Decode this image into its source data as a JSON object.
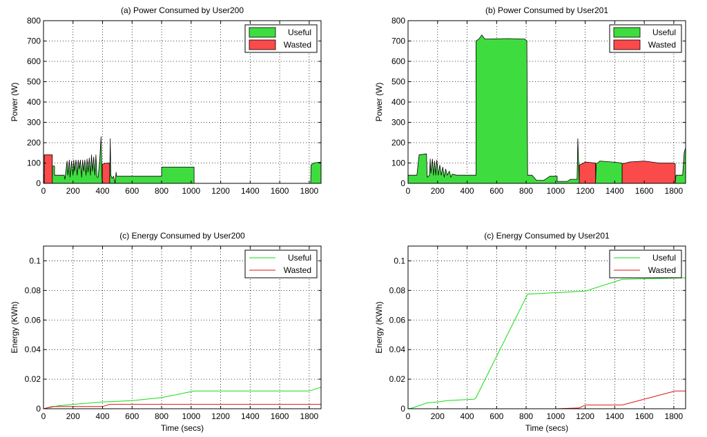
{
  "figure": {
    "background": "#ffffff",
    "useful_color": "#3fdc3f",
    "wasted_color": "#fb4a4a",
    "useful_line_color": "#11dd11",
    "wasted_line_color": "#dd1111"
  },
  "chart_data": [
    {
      "id": "a",
      "type": "area",
      "title": "(a) Power Consumed by User200",
      "xlabel": "",
      "ylabel": "Power (W)",
      "xlim": [
        0,
        1880
      ],
      "ylim": [
        0,
        800
      ],
      "xticks": [
        0,
        200,
        400,
        600,
        800,
        1000,
        1200,
        1400,
        1600,
        1800
      ],
      "yticks": [
        0,
        100,
        200,
        300,
        400,
        500,
        600,
        700,
        800
      ],
      "grid": true,
      "legend": {
        "position": "top-right",
        "entries": [
          "Useful",
          "Wasted"
        ]
      },
      "series": [
        {
          "name": "Useful",
          "segments": [
            [
              [
                0,
                40
              ],
              [
                60,
                40
              ],
              [
                60,
                85
              ],
              [
                75,
                85
              ],
              [
                75,
                40
              ],
              [
                140,
                40
              ],
              [
                145,
                20
              ],
              [
                160,
                110
              ],
              [
                165,
                40
              ],
              [
                175,
                115
              ],
              [
                180,
                30
              ],
              [
                190,
                110
              ],
              [
                200,
                40
              ],
              [
                205,
                115
              ],
              [
                210,
                60
              ],
              [
                220,
                115
              ],
              [
                228,
                40
              ],
              [
                235,
                115
              ],
              [
                242,
                70
              ],
              [
                250,
                115
              ],
              [
                258,
                30
              ],
              [
                265,
                115
              ],
              [
                272,
                60
              ],
              [
                280,
                115
              ],
              [
                288,
                40
              ],
              [
                295,
                120
              ],
              [
                302,
                55
              ],
              [
                310,
                125
              ],
              [
                318,
                40
              ],
              [
                325,
                140
              ],
              [
                332,
                60
              ],
              [
                340,
                130
              ],
              [
                348,
                40
              ],
              [
                355,
                140
              ],
              [
                362,
                30
              ],
              [
                370,
                30
              ],
              [
                380,
                110
              ],
              [
                390,
                230
              ],
              [
                395,
                40
              ],
              [
                398,
                0
              ]
            ],
            [
              [
                448,
                0
              ],
              [
                452,
                220
              ],
              [
                456,
                40
              ],
              [
                465,
                25
              ],
              [
                475,
                35
              ],
              [
                485,
                0
              ]
            ],
            [
              [
                485,
                0
              ],
              [
                490,
                40
              ],
              [
                492,
                55
              ],
              [
                495,
                35
              ],
              [
                640,
                35
              ],
              [
                800,
                35
              ],
              [
                800,
                80
              ],
              [
                1020,
                80
              ],
              [
                1020,
                0
              ]
            ],
            [
              [
                1810,
                0
              ],
              [
                1812,
                90
              ],
              [
                1830,
                100
              ],
              [
                1880,
                105
              ],
              [
                1880,
                0
              ]
            ]
          ]
        },
        {
          "name": "Wasted",
          "segments": [
            [
              [
                5,
                0
              ],
              [
                5,
                140
              ],
              [
                60,
                140
              ],
              [
                60,
                0
              ]
            ],
            [
              [
                398,
                0
              ],
              [
                398,
                95
              ],
              [
                430,
                100
              ],
              [
                448,
                100
              ],
              [
                448,
                0
              ]
            ]
          ]
        }
      ]
    },
    {
      "id": "b",
      "type": "area",
      "title": "(b) Power Consumed by User201",
      "xlabel": "",
      "ylabel": "Power (W)",
      "xlim": [
        0,
        1880
      ],
      "ylim": [
        0,
        800
      ],
      "xticks": [
        0,
        200,
        400,
        600,
        800,
        1000,
        1200,
        1400,
        1600,
        1800
      ],
      "yticks": [
        0,
        100,
        200,
        300,
        400,
        500,
        600,
        700,
        800
      ],
      "grid": true,
      "legend": {
        "position": "top-right",
        "entries": [
          "Useful",
          "Wasted"
        ]
      },
      "series": [
        {
          "name": "Useful",
          "segments": [
            [
              [
                0,
                40
              ],
              [
                60,
                40
              ],
              [
                75,
                140
              ],
              [
                125,
                145
              ],
              [
                130,
                30
              ],
              [
                145,
                40
              ],
              [
                150,
                120
              ],
              [
                155,
                50
              ],
              [
                165,
                120
              ],
              [
                172,
                40
              ],
              [
                180,
                110
              ],
              [
                188,
                40
              ],
              [
                195,
                115
              ],
              [
                205,
                40
              ],
              [
                215,
                90
              ],
              [
                225,
                40
              ],
              [
                235,
                80
              ],
              [
                245,
                30
              ],
              [
                255,
                70
              ],
              [
                265,
                40
              ],
              [
                280,
                60
              ],
              [
                290,
                30
              ],
              [
                300,
                45
              ],
              [
                330,
                40
              ],
              [
                460,
                40
              ],
              [
                460,
                700
              ],
              [
                480,
                710
              ],
              [
                500,
                730
              ],
              [
                520,
                710
              ],
              [
                680,
                712
              ],
              [
                790,
                710
              ],
              [
                805,
                700
              ],
              [
                810,
                40
              ],
              [
                840,
                40
              ],
              [
                870,
                15
              ],
              [
                920,
                15
              ],
              [
                960,
                35
              ],
              [
                1010,
                35
              ],
              [
                1010,
                10
              ],
              [
                1080,
                10
              ],
              [
                1100,
                20
              ],
              [
                1145,
                20
              ],
              [
                1150,
                220
              ],
              [
                1160,
                0
              ]
            ],
            [
              [
                1270,
                0
              ],
              [
                1275,
                95
              ],
              [
                1300,
                110
              ],
              [
                1380,
                105
              ],
              [
                1450,
                100
              ],
              [
                1450,
                0
              ]
            ],
            [
              [
                1810,
                0
              ],
              [
                1815,
                40
              ],
              [
                1860,
                40
              ],
              [
                1870,
                150
              ],
              [
                1880,
                175
              ],
              [
                1880,
                0
              ]
            ]
          ]
        },
        {
          "name": "Wasted",
          "segments": [
            [
              [
                1160,
                0
              ],
              [
                1160,
                90
              ],
              [
                1190,
                100
              ],
              [
                1200,
                105
              ],
              [
                1270,
                100
              ],
              [
                1270,
                0
              ]
            ],
            [
              [
                1450,
                0
              ],
              [
                1450,
                95
              ],
              [
                1500,
                105
              ],
              [
                1600,
                110
              ],
              [
                1700,
                100
              ],
              [
                1800,
                100
              ],
              [
                1810,
                95
              ],
              [
                1810,
                0
              ]
            ]
          ]
        }
      ]
    },
    {
      "id": "c1",
      "type": "line",
      "title": "(c) Energy Consumed by User200",
      "xlabel": "Time (secs)",
      "ylabel": "Energy (KWh)",
      "xlim": [
        0,
        1880
      ],
      "ylim": [
        0,
        0.11
      ],
      "xticks": [
        0,
        200,
        400,
        600,
        800,
        1000,
        1200,
        1400,
        1600,
        1800
      ],
      "yticks": [
        0,
        0.02,
        0.04,
        0.06,
        0.08,
        0.1
      ],
      "ytick_labels": [
        "0",
        "0.02",
        "0.04",
        "0.06",
        "0.08",
        "0.1"
      ],
      "grid": true,
      "legend": {
        "position": "top-right",
        "entries": [
          "Useful",
          "Wasted"
        ]
      },
      "series": [
        {
          "name": "Useful",
          "points": [
            [
              0,
              0
            ],
            [
              100,
              0.002
            ],
            [
              200,
              0.003
            ],
            [
              400,
              0.0045
            ],
            [
              600,
              0.0055
            ],
            [
              800,
              0.0075
            ],
            [
              1020,
              0.012
            ],
            [
              1200,
              0.012
            ],
            [
              1800,
              0.012
            ],
            [
              1880,
              0.0145
            ]
          ]
        },
        {
          "name": "Wasted",
          "points": [
            [
              0,
              0
            ],
            [
              60,
              0.0015
            ],
            [
              400,
              0.0015
            ],
            [
              448,
              0.003
            ],
            [
              1880,
              0.003
            ]
          ]
        }
      ]
    },
    {
      "id": "c2",
      "type": "line",
      "title": "(c) Energy Consumed by User201",
      "xlabel": "Time (secs)",
      "ylabel": "Energy (KWh)",
      "xlim": [
        0,
        1880
      ],
      "ylim": [
        0,
        0.11
      ],
      "xticks": [
        0,
        200,
        400,
        600,
        800,
        1000,
        1200,
        1400,
        1600,
        1800
      ],
      "yticks": [
        0,
        0.02,
        0.04,
        0.06,
        0.08,
        0.1
      ],
      "ytick_labels": [
        "0",
        "0.02",
        "0.04",
        "0.06",
        "0.08",
        "0.1"
      ],
      "grid": true,
      "legend": {
        "position": "top-right",
        "entries": [
          "Useful",
          "Wasted"
        ]
      },
      "series": [
        {
          "name": "Useful",
          "points": [
            [
              0,
              0
            ],
            [
              30,
              0.0005
            ],
            [
              130,
              0.004
            ],
            [
              200,
              0.0045
            ],
            [
              260,
              0.0055
            ],
            [
              450,
              0.0065
            ],
            [
              460,
              0.0075
            ],
            [
              810,
              0.0775
            ],
            [
              1000,
              0.0785
            ],
            [
              1200,
              0.0795
            ],
            [
              1450,
              0.0875
            ],
            [
              1880,
              0.0885
            ]
          ]
        },
        {
          "name": "Wasted",
          "points": [
            [
              130,
              0
            ],
            [
              400,
              0
            ],
            [
              1000,
              0
            ],
            [
              1160,
              0.0005
            ],
            [
              1200,
              0.0025
            ],
            [
              1450,
              0.0025
            ],
            [
              1810,
              0.012
            ],
            [
              1880,
              0.012
            ]
          ]
        }
      ]
    }
  ]
}
